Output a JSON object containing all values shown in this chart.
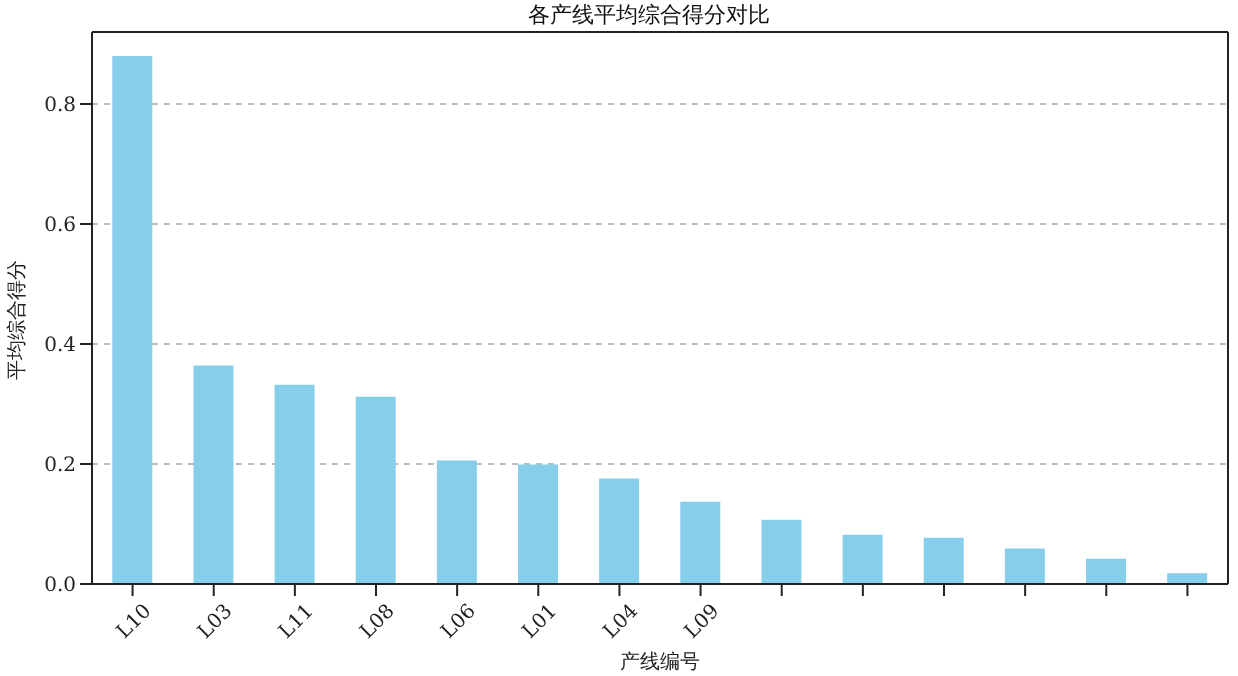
{
  "chart_data": {
    "type": "bar",
    "title": "各产线平均综合得分对比",
    "xlabel": "产线编号",
    "ylabel": "平均综合得分",
    "categories": [
      "L10",
      "L03",
      "L11",
      "L08",
      "L06",
      "L01",
      "L04",
      "L09",
      null,
      null,
      null,
      null,
      null,
      null
    ],
    "values": [
      0.88,
      0.364,
      0.332,
      0.312,
      0.206,
      0.199,
      0.176,
      0.137,
      0.107,
      0.082,
      0.077,
      0.059,
      0.042,
      0.018
    ],
    "color": "#87ceeb",
    "ylim": [
      0,
      0.92
    ],
    "yticks": [
      {
        "value": 0,
        "label": "0.0"
      },
      {
        "value": 0.2,
        "label": "0.2"
      },
      {
        "value": 0.4,
        "label": "0.4"
      },
      {
        "value": 0.6,
        "label": "0.6"
      },
      {
        "value": 0.8,
        "label": "0.8"
      }
    ],
    "grid": "y"
  }
}
